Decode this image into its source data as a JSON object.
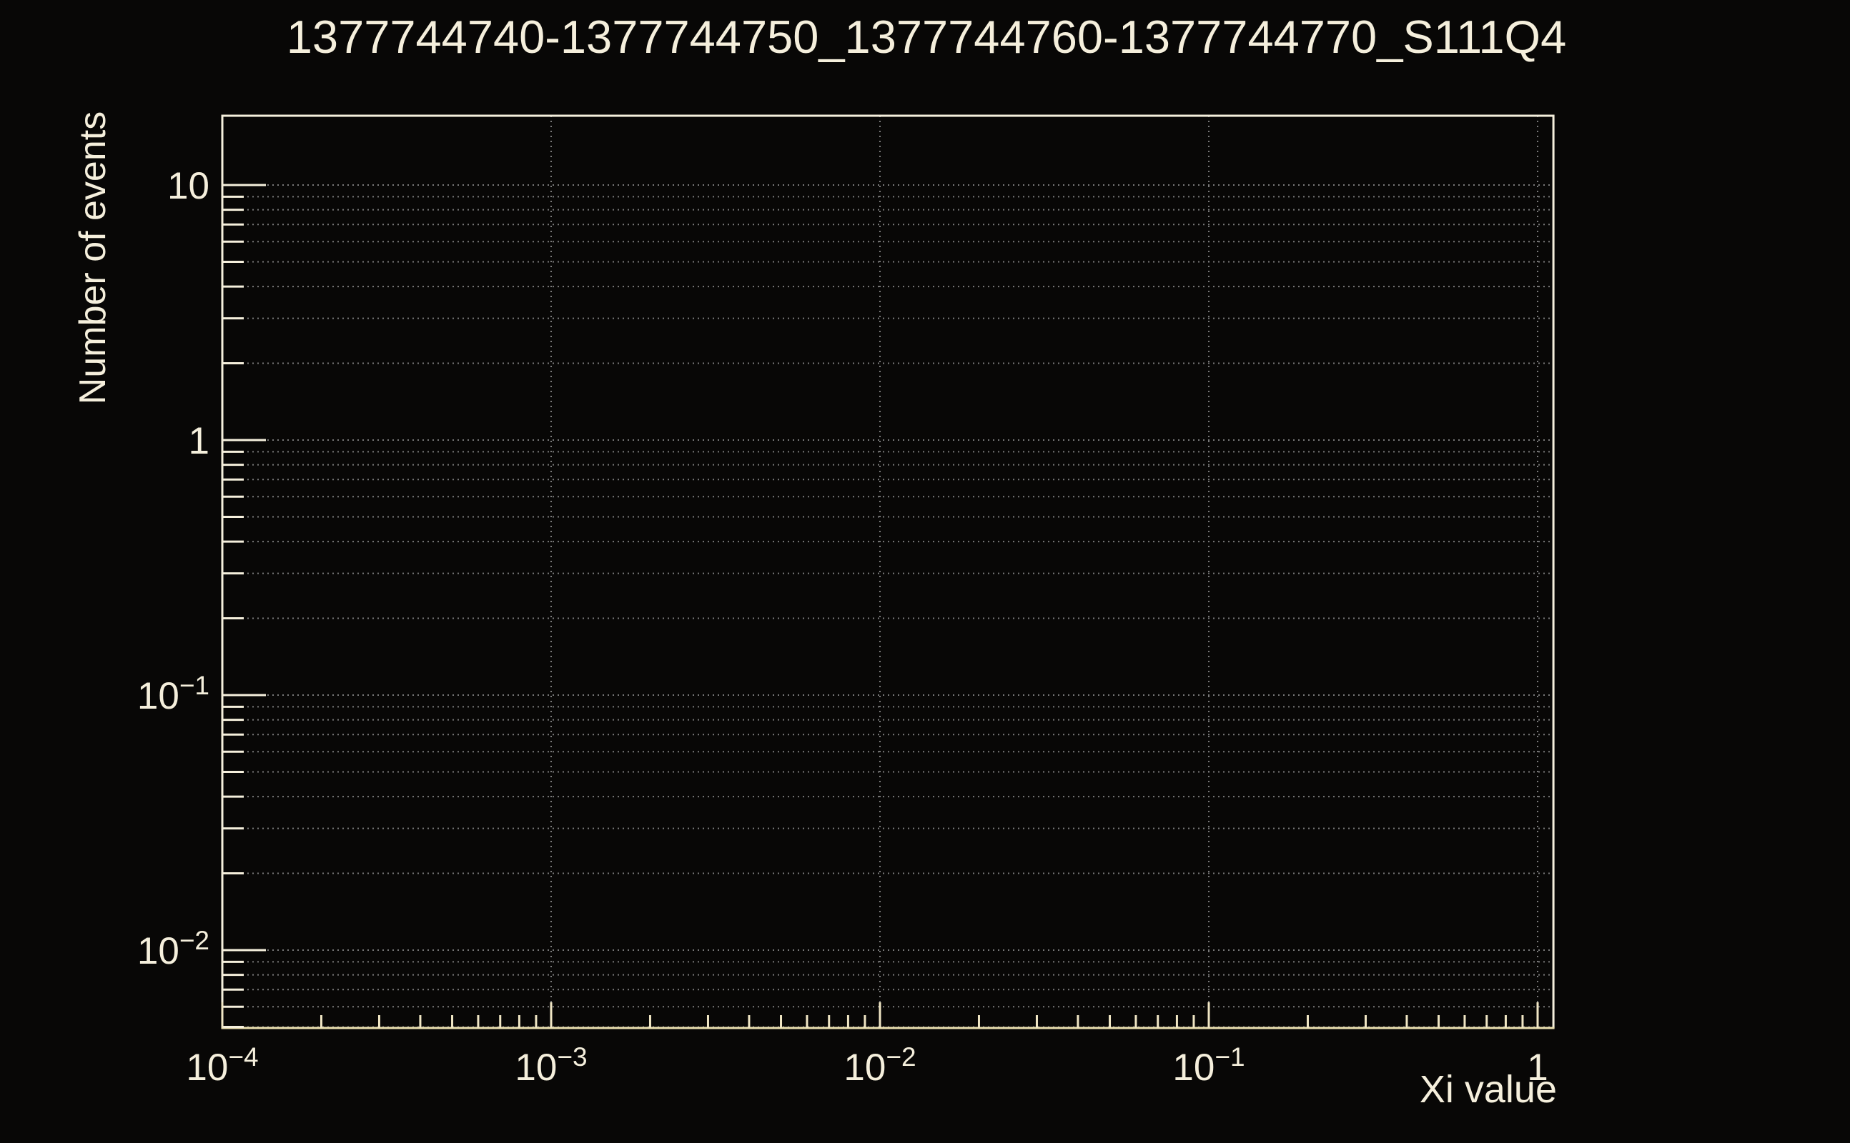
{
  "window": {
    "background": "#080706"
  },
  "colors": {
    "text": "#f5efdc",
    "frame": "#f5efdc",
    "x_axis_line": "#eadfae",
    "x_ticks": "#f0e6c4",
    "grid": "#7a7a7a"
  },
  "chart_data": {
    "type": "bar",
    "title": "1377744740-1377744750_1377744760-1377744770_S111Q4",
    "xlabel": "Xi value",
    "ylabel": "Number of events",
    "x_scale": "log",
    "y_scale": "log",
    "xlim": [
      0.0001,
      1.117
    ],
    "ylim": [
      0.00495,
      18.7
    ],
    "grid": true,
    "legend": false,
    "categories": [],
    "values": [],
    "series": [],
    "x_ticks": [
      {
        "value": 0.0001,
        "base": "10",
        "exp": "−4"
      },
      {
        "value": 0.001,
        "base": "10",
        "exp": "−3"
      },
      {
        "value": 0.01,
        "base": "10",
        "exp": "−2"
      },
      {
        "value": 0.1,
        "base": "10",
        "exp": "−1"
      },
      {
        "value": 1,
        "base": "1",
        "exp": ""
      }
    ],
    "y_ticks": [
      {
        "value": 10,
        "base": "10",
        "exp": ""
      },
      {
        "value": 1,
        "base": "1",
        "exp": ""
      },
      {
        "value": 0.1,
        "base": "10",
        "exp": "−1"
      },
      {
        "value": 0.01,
        "base": "10",
        "exp": "−2"
      }
    ]
  }
}
